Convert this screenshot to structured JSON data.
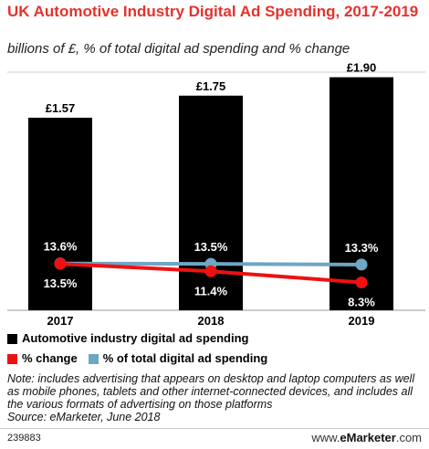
{
  "header": {
    "title": "UK Automotive Industry Digital Ad Spending, 2017-2019",
    "subtitle": "billions of £, % of total digital ad spending and % change"
  },
  "chart_data": {
    "type": "bar",
    "categories": [
      "2017",
      "2018",
      "2019"
    ],
    "bar_series": {
      "name": "Automotive industry digital ad spending",
      "values": [
        1.57,
        1.75,
        1.9
      ],
      "labels": [
        "£1.57",
        "£1.75",
        "£1.90"
      ],
      "color": "#000000"
    },
    "line_series": [
      {
        "name": "% change",
        "values": [
          13.5,
          11.4,
          8.3
        ],
        "labels": [
          "13.5%",
          "11.4%",
          "8.3%"
        ],
        "color": "#ee1111"
      },
      {
        "name": "% of total digital ad spending",
        "values": [
          13.6,
          13.5,
          13.3
        ],
        "labels": [
          "13.6%",
          "13.5%",
          "13.3%"
        ],
        "color": "#6ea6c4"
      }
    ]
  },
  "legend": [
    {
      "label": "Automotive industry digital ad spending",
      "color": "#000000"
    },
    {
      "label": "% change",
      "color": "#ee1111"
    },
    {
      "label": "% of total digital ad spending",
      "color": "#6ea6c4"
    }
  ],
  "note": "Note: includes advertising that appears on desktop and laptop computers as well as mobile phones, tablets and other internet-connected devices, and includes all the various formats of advertising on those platforms",
  "source": "Source: eMarketer, June 2018",
  "footer": {
    "chart_id": "239883",
    "brand_prefix": "www.",
    "brand_main": "eMarketer",
    "brand_suffix": ".com"
  },
  "colors": {
    "title": "#e5322d",
    "gridline": "#cccccc"
  }
}
